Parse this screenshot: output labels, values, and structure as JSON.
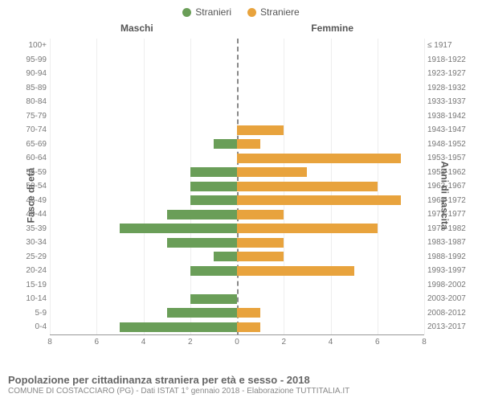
{
  "legend": {
    "male": {
      "label": "Stranieri",
      "color": "#6a9e58"
    },
    "female": {
      "label": "Straniere",
      "color": "#e8a33d"
    }
  },
  "headers": {
    "left": "Maschi",
    "right": "Femmine"
  },
  "y_axis_left": "Fasce di età",
  "y_axis_right": "Anni di nascita",
  "x_axis": {
    "max": 8,
    "ticks": [
      8,
      6,
      4,
      2,
      0,
      2,
      4,
      6,
      8
    ]
  },
  "footer": {
    "title": "Popolazione per cittadinanza straniera per età e sesso - 2018",
    "subtitle": "COMUNE DI COSTACCIARO (PG) - Dati ISTAT 1° gennaio 2018 - Elaborazione TUTTITALIA.IT"
  },
  "grid_color": "#eeeeee",
  "center_line_color": "#888888",
  "background_color": "#ffffff",
  "rows": [
    {
      "age": "100+",
      "birth": "≤ 1917",
      "m": 0,
      "f": 0
    },
    {
      "age": "95-99",
      "birth": "1918-1922",
      "m": 0,
      "f": 0
    },
    {
      "age": "90-94",
      "birth": "1923-1927",
      "m": 0,
      "f": 0
    },
    {
      "age": "85-89",
      "birth": "1928-1932",
      "m": 0,
      "f": 0
    },
    {
      "age": "80-84",
      "birth": "1933-1937",
      "m": 0,
      "f": 0
    },
    {
      "age": "75-79",
      "birth": "1938-1942",
      "m": 0,
      "f": 0
    },
    {
      "age": "70-74",
      "birth": "1943-1947",
      "m": 0,
      "f": 2
    },
    {
      "age": "65-69",
      "birth": "1948-1952",
      "m": 1,
      "f": 1
    },
    {
      "age": "60-64",
      "birth": "1953-1957",
      "m": 0,
      "f": 7
    },
    {
      "age": "55-59",
      "birth": "1958-1962",
      "m": 2,
      "f": 3
    },
    {
      "age": "50-54",
      "birth": "1963-1967",
      "m": 2,
      "f": 6
    },
    {
      "age": "45-49",
      "birth": "1968-1972",
      "m": 2,
      "f": 7
    },
    {
      "age": "40-44",
      "birth": "1973-1977",
      "m": 3,
      "f": 2
    },
    {
      "age": "35-39",
      "birth": "1978-1982",
      "m": 5,
      "f": 6
    },
    {
      "age": "30-34",
      "birth": "1983-1987",
      "m": 3,
      "f": 2
    },
    {
      "age": "25-29",
      "birth": "1988-1992",
      "m": 1,
      "f": 2
    },
    {
      "age": "20-24",
      "birth": "1993-1997",
      "m": 2,
      "f": 5
    },
    {
      "age": "15-19",
      "birth": "1998-2002",
      "m": 0,
      "f": 0
    },
    {
      "age": "10-14",
      "birth": "2003-2007",
      "m": 2,
      "f": 0
    },
    {
      "age": "5-9",
      "birth": "2008-2012",
      "m": 3,
      "f": 1
    },
    {
      "age": "0-4",
      "birth": "2013-2017",
      "m": 5,
      "f": 1
    }
  ]
}
